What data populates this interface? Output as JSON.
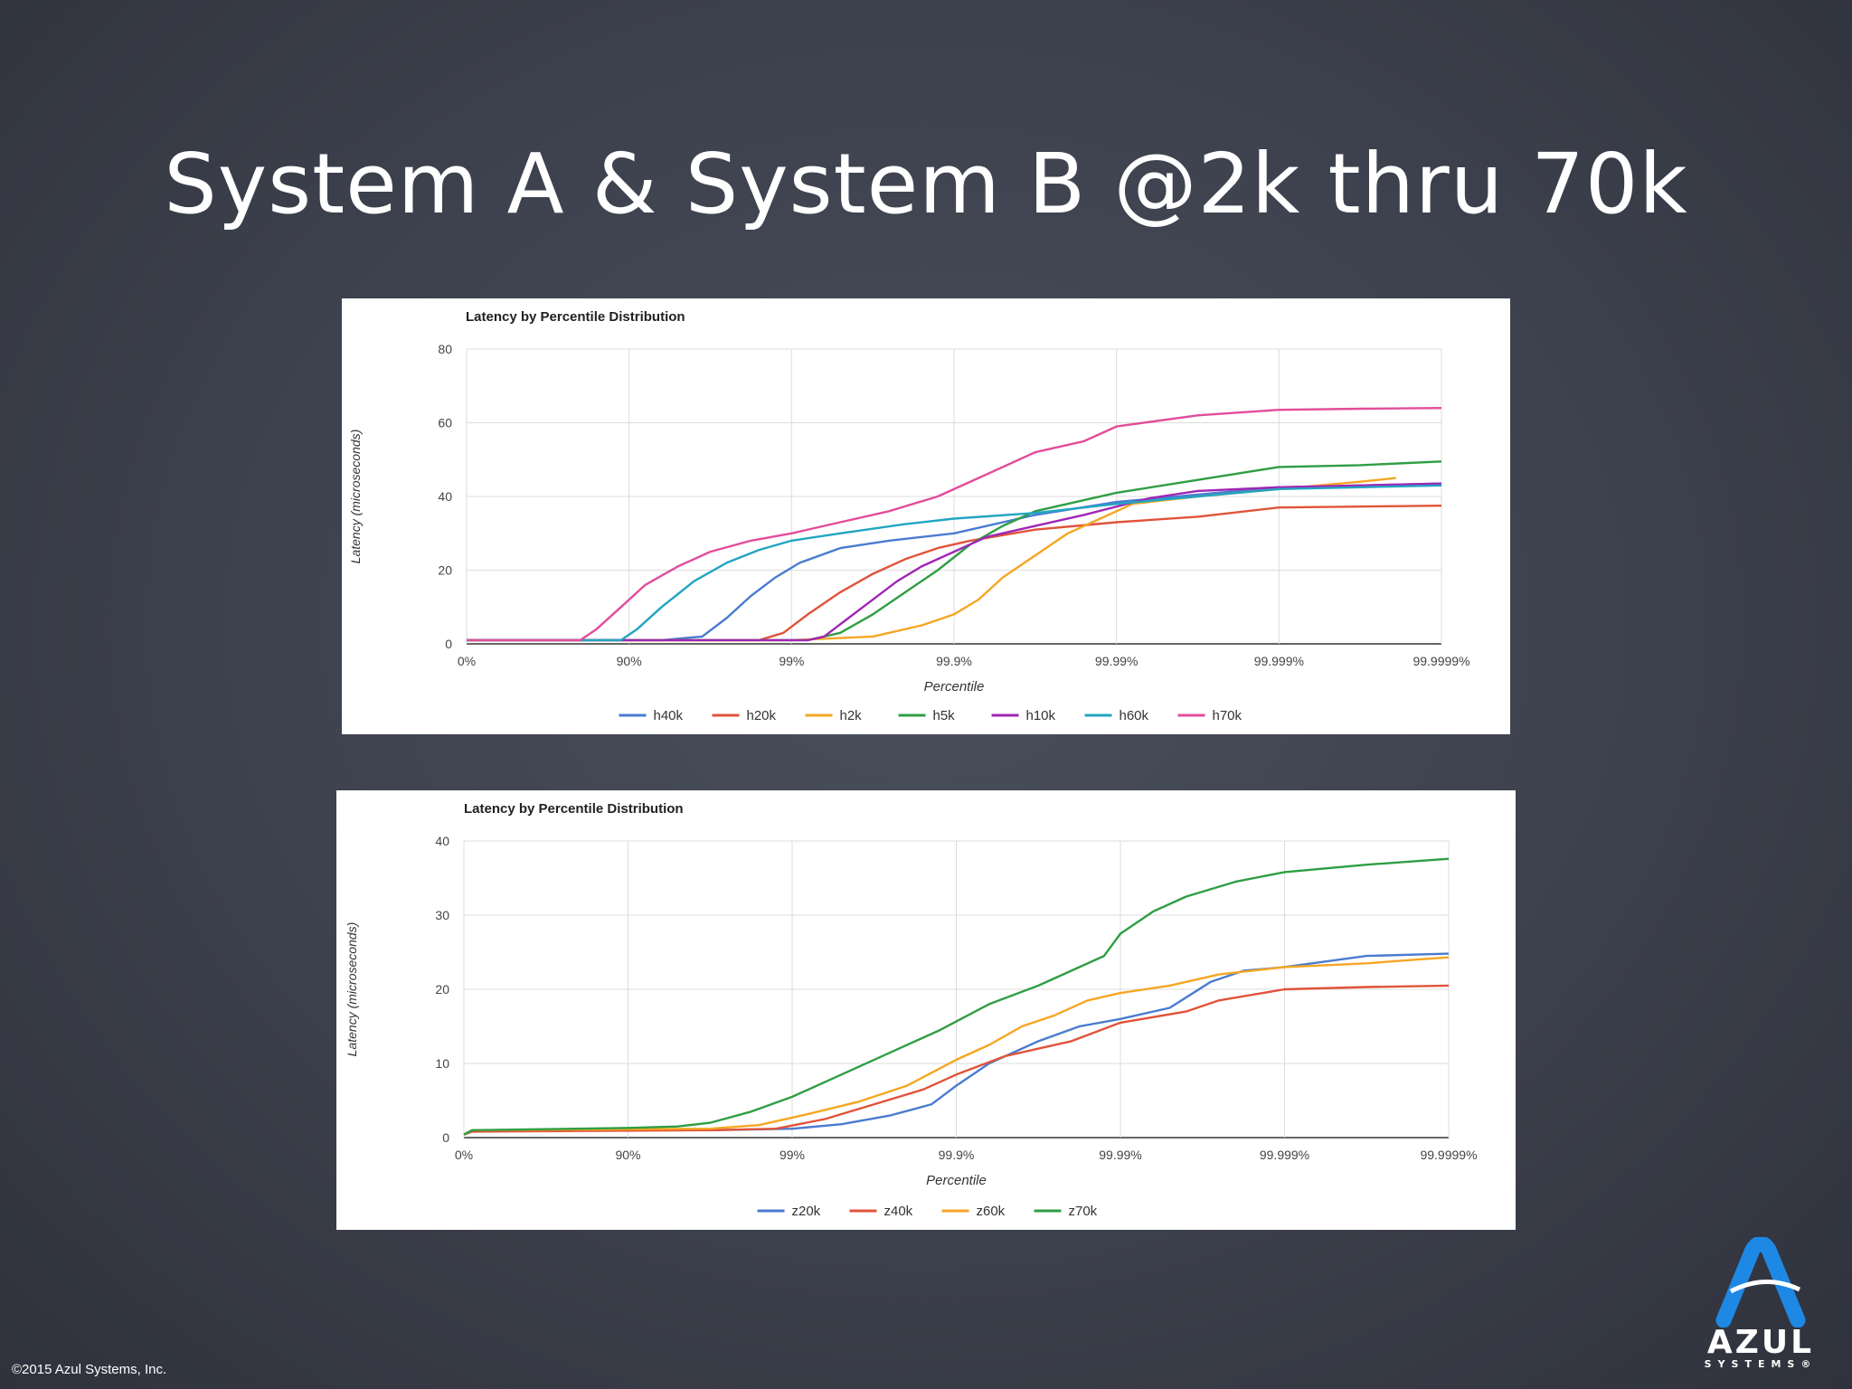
{
  "slide": {
    "title": "System A & System B @2k thru 70k",
    "copyright": "©2015 Azul Systems, Inc.",
    "logo": {
      "name": "AZUL",
      "sub": "SYSTEMS®",
      "color": "#1e88e5"
    }
  },
  "chart_data": [
    {
      "type": "line",
      "title": "Latency by Percentile Distribution",
      "xlabel": "Percentile",
      "ylabel": "Latency (microseconds)",
      "x_scale": "percentile-nines",
      "x_ticks": [
        "0%",
        "90%",
        "99%",
        "99.9%",
        "99.99%",
        "99.999%",
        "99.9999%"
      ],
      "y_ticks": [
        0,
        20,
        40,
        60,
        80
      ],
      "ylim": [
        0,
        80
      ],
      "grid": true,
      "legend": "bottom",
      "series": [
        {
          "name": "h40k",
          "color": "#4a7bd0",
          "points": [
            [
              0,
              1
            ],
            [
              1.2,
              1
            ],
            [
              1.45,
              2
            ],
            [
              1.6,
              7
            ],
            [
              1.75,
              13
            ],
            [
              1.9,
              18
            ],
            [
              2.05,
              22
            ],
            [
              2.3,
              26
            ],
            [
              2.6,
              28
            ],
            [
              3,
              30
            ],
            [
              3.5,
              35
            ],
            [
              4,
              38.5
            ],
            [
              4.5,
              40.5
            ],
            [
              5,
              42.5
            ],
            [
              5.5,
              43
            ],
            [
              6,
              43.5
            ]
          ]
        },
        {
          "name": "h20k",
          "color": "#e0533a",
          "points": [
            [
              0,
              1
            ],
            [
              1.8,
              1
            ],
            [
              1.95,
              3
            ],
            [
              2.1,
              8
            ],
            [
              2.3,
              14
            ],
            [
              2.5,
              19
            ],
            [
              2.7,
              23
            ],
            [
              2.9,
              26
            ],
            [
              3.1,
              28
            ],
            [
              3.5,
              31
            ],
            [
              4,
              33
            ],
            [
              4.5,
              34.5
            ],
            [
              5,
              37
            ],
            [
              6,
              37.5
            ]
          ]
        },
        {
          "name": "h2k",
          "color": "#f5a623",
          "points": [
            [
              0,
              1
            ],
            [
              2,
              1
            ],
            [
              2.5,
              2
            ],
            [
              2.8,
              5
            ],
            [
              3,
              8
            ],
            [
              3.15,
              12
            ],
            [
              3.3,
              18
            ],
            [
              3.5,
              24
            ],
            [
              3.7,
              30
            ],
            [
              3.9,
              34
            ],
            [
              4.1,
              38
            ],
            [
              4.5,
              40
            ],
            [
              5,
              42
            ],
            [
              5.5,
              44
            ],
            [
              5.72,
              45
            ]
          ]
        },
        {
          "name": "h5k",
          "color": "#2f9e44",
          "points": [
            [
              0,
              1
            ],
            [
              2.1,
              1
            ],
            [
              2.3,
              3
            ],
            [
              2.5,
              8
            ],
            [
              2.7,
              14
            ],
            [
              2.9,
              20
            ],
            [
              3.1,
              27
            ],
            [
              3.3,
              32
            ],
            [
              3.5,
              36
            ],
            [
              3.8,
              39
            ],
            [
              4,
              41
            ],
            [
              4.5,
              44.5
            ],
            [
              5,
              48
            ],
            [
              5.5,
              48.5
            ],
            [
              6,
              49.5
            ]
          ]
        },
        {
          "name": "h10k",
          "color": "#a026b5",
          "points": [
            [
              0,
              1
            ],
            [
              2.1,
              1
            ],
            [
              2.2,
              2
            ],
            [
              2.35,
              7
            ],
            [
              2.5,
              12
            ],
            [
              2.65,
              17
            ],
            [
              2.8,
              21
            ],
            [
              3,
              25
            ],
            [
              3.2,
              29
            ],
            [
              3.5,
              32
            ],
            [
              3.8,
              35
            ],
            [
              4.2,
              39.5
            ],
            [
              4.5,
              41.5
            ],
            [
              5,
              42.5
            ],
            [
              5.5,
              43
            ],
            [
              6,
              43.5
            ]
          ]
        },
        {
          "name": "h60k",
          "color": "#22a5c2",
          "points": [
            [
              0,
              1
            ],
            [
              0.95,
              1
            ],
            [
              1.05,
              4
            ],
            [
              1.2,
              10
            ],
            [
              1.4,
              17
            ],
            [
              1.6,
              22
            ],
            [
              1.8,
              25.5
            ],
            [
              2,
              28
            ],
            [
              2.3,
              30
            ],
            [
              2.7,
              32.5
            ],
            [
              3,
              34
            ],
            [
              3.5,
              35.5
            ],
            [
              4,
              38
            ],
            [
              4.5,
              40
            ],
            [
              5,
              42
            ],
            [
              5.5,
              42.5
            ],
            [
              6,
              43
            ]
          ]
        },
        {
          "name": "h70k",
          "color": "#e24d9a",
          "points": [
            [
              0,
              1
            ],
            [
              0.7,
              1
            ],
            [
              0.8,
              4
            ],
            [
              0.95,
              10
            ],
            [
              1.1,
              16
            ],
            [
              1.3,
              21
            ],
            [
              1.5,
              25
            ],
            [
              1.75,
              28
            ],
            [
              2,
              30
            ],
            [
              2.3,
              33
            ],
            [
              2.6,
              36
            ],
            [
              2.9,
              40
            ],
            [
              3.2,
              46
            ],
            [
              3.5,
              52
            ],
            [
              3.8,
              55
            ],
            [
              4,
              59
            ],
            [
              4.5,
              62
            ],
            [
              5,
              63.5
            ],
            [
              5.5,
              63.8
            ],
            [
              6,
              64
            ]
          ]
        }
      ]
    },
    {
      "type": "line",
      "title": "Latency by Percentile Distribution",
      "xlabel": "Percentile",
      "ylabel": "Latency (microseconds)",
      "x_scale": "percentile-nines",
      "x_ticks": [
        "0%",
        "90%",
        "99%",
        "99.9%",
        "99.99%",
        "99.999%",
        "99.9999%"
      ],
      "y_ticks": [
        0,
        10,
        20,
        30,
        40
      ],
      "ylim": [
        0,
        40
      ],
      "grid": true,
      "legend": "bottom",
      "series": [
        {
          "name": "z20k",
          "color": "#4a7bd0",
          "points": [
            [
              0,
              0.4
            ],
            [
              0.05,
              1
            ],
            [
              1.5,
              1
            ],
            [
              2,
              1.2
            ],
            [
              2.3,
              1.8
            ],
            [
              2.6,
              3
            ],
            [
              2.85,
              4.5
            ],
            [
              3,
              7
            ],
            [
              3.2,
              10
            ],
            [
              3.5,
              13
            ],
            [
              3.75,
              15
            ],
            [
              4,
              16
            ],
            [
              4.3,
              17.5
            ],
            [
              4.55,
              21
            ],
            [
              4.75,
              22.5
            ],
            [
              5,
              23
            ],
            [
              5.5,
              24.5
            ],
            [
              6,
              24.8
            ]
          ]
        },
        {
          "name": "z40k",
          "color": "#e0533a",
          "points": [
            [
              0,
              0.4
            ],
            [
              0.05,
              0.8
            ],
            [
              1.5,
              1
            ],
            [
              1.9,
              1.2
            ],
            [
              2.2,
              2.5
            ],
            [
              2.5,
              4.5
            ],
            [
              2.8,
              6.5
            ],
            [
              3,
              8.5
            ],
            [
              3.3,
              11
            ],
            [
              3.7,
              13
            ],
            [
              4,
              15.5
            ],
            [
              4.4,
              17
            ],
            [
              4.6,
              18.5
            ],
            [
              5,
              20
            ],
            [
              5.5,
              20.3
            ],
            [
              6,
              20.5
            ]
          ]
        },
        {
          "name": "z60k",
          "color": "#f5a623",
          "points": [
            [
              0,
              0.4
            ],
            [
              0.05,
              1
            ],
            [
              1.5,
              1.2
            ],
            [
              1.8,
              1.7
            ],
            [
              2.1,
              3.2
            ],
            [
              2.4,
              4.8
            ],
            [
              2.7,
              7
            ],
            [
              3,
              10.5
            ],
            [
              3.2,
              12.5
            ],
            [
              3.4,
              15
            ],
            [
              3.6,
              16.5
            ],
            [
              3.8,
              18.5
            ],
            [
              4,
              19.5
            ],
            [
              4.3,
              20.5
            ],
            [
              4.6,
              22
            ],
            [
              5,
              23
            ],
            [
              5.5,
              23.5
            ],
            [
              5.8,
              24
            ],
            [
              6,
              24.3
            ]
          ]
        },
        {
          "name": "z70k",
          "color": "#2f9e44",
          "points": [
            [
              0,
              0.4
            ],
            [
              0.05,
              1
            ],
            [
              1,
              1.3
            ],
            [
              1.3,
              1.5
            ],
            [
              1.5,
              2
            ],
            [
              1.75,
              3.5
            ],
            [
              2,
              5.5
            ],
            [
              2.3,
              8.5
            ],
            [
              2.6,
              11.5
            ],
            [
              2.9,
              14.5
            ],
            [
              3.2,
              18
            ],
            [
              3.5,
              20.5
            ],
            [
              3.7,
              22.5
            ],
            [
              3.9,
              24.5
            ],
            [
              4,
              27.5
            ],
            [
              4.2,
              30.5
            ],
            [
              4.4,
              32.5
            ],
            [
              4.7,
              34.5
            ],
            [
              5,
              35.8
            ],
            [
              5.5,
              36.8
            ],
            [
              6,
              37.6
            ]
          ]
        }
      ]
    }
  ]
}
